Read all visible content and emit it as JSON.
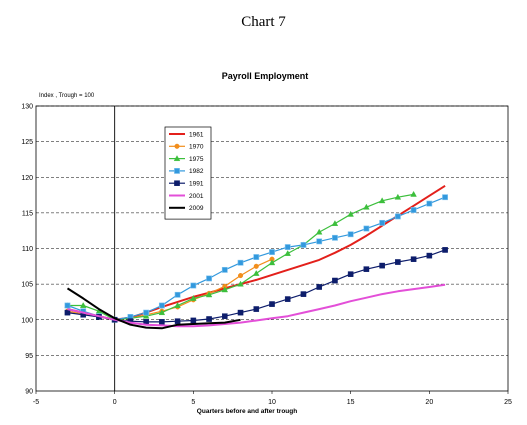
{
  "page_title": "Chart 7",
  "chart_data": {
    "type": "line",
    "title": "Payroll Employment",
    "ylabel": "Index , Trough = 100",
    "xlabel": "Quarters before and after trough",
    "xlim": [
      -5,
      25
    ],
    "ylim": [
      90,
      130
    ],
    "xticks": [
      -5,
      0,
      5,
      10,
      15,
      20,
      25
    ],
    "yticks": [
      90,
      95,
      100,
      105,
      110,
      115,
      120,
      125,
      130
    ],
    "grid": "horizontal dashed",
    "legend_position": "upper-left",
    "series": [
      {
        "name": "1961",
        "color": "#e3201b",
        "marker": "none",
        "width": 2,
        "points": [
          [
            -3,
            101.5
          ],
          [
            -2,
            101
          ],
          [
            -1,
            100.5
          ],
          [
            0,
            100
          ],
          [
            1,
            100.3
          ],
          [
            2,
            101
          ],
          [
            3,
            101.8
          ],
          [
            4,
            102.5
          ],
          [
            5,
            103.2
          ],
          [
            6,
            103.8
          ],
          [
            7,
            104.4
          ],
          [
            8,
            105
          ],
          [
            9,
            105.6
          ],
          [
            10,
            106.3
          ],
          [
            11,
            107
          ],
          [
            12,
            107.7
          ],
          [
            13,
            108.4
          ],
          [
            14,
            109.4
          ],
          [
            15,
            110.5
          ],
          [
            16,
            111.8
          ],
          [
            17,
            113.2
          ],
          [
            18,
            114.6
          ],
          [
            19,
            116
          ],
          [
            20,
            117.4
          ],
          [
            21,
            118.8
          ]
        ]
      },
      {
        "name": "1970",
        "color": "#f28e1c",
        "marker": "circle",
        "width": 1.2,
        "points": [
          [
            -3,
            101.2
          ],
          [
            -2,
            100.8
          ],
          [
            -1,
            100.4
          ],
          [
            0,
            100
          ],
          [
            1,
            100.2
          ],
          [
            2,
            100.7
          ],
          [
            3,
            101.2
          ],
          [
            4,
            101.8
          ],
          [
            5,
            102.8
          ],
          [
            6,
            103.7
          ],
          [
            7,
            104.7
          ],
          [
            8,
            106.2
          ],
          [
            9,
            107.5
          ],
          [
            10,
            108.5
          ]
        ]
      },
      {
        "name": "1975",
        "color": "#3cbf3c",
        "marker": "triangle",
        "width": 1.2,
        "points": [
          [
            -3,
            102
          ],
          [
            -2,
            102
          ],
          [
            -1,
            101.2
          ],
          [
            0,
            100
          ],
          [
            1,
            100.2
          ],
          [
            2,
            100.5
          ],
          [
            3,
            101
          ],
          [
            4,
            102
          ],
          [
            5,
            103
          ],
          [
            6,
            103.5
          ],
          [
            7,
            104.2
          ],
          [
            8,
            105
          ],
          [
            9,
            106.5
          ],
          [
            10,
            108
          ],
          [
            11,
            109.3
          ],
          [
            12,
            110.5
          ],
          [
            13,
            112.3
          ],
          [
            14,
            113.5
          ],
          [
            15,
            114.8
          ],
          [
            16,
            115.8
          ],
          [
            17,
            116.7
          ],
          [
            18,
            117.2
          ],
          [
            19,
            117.6
          ]
        ]
      },
      {
        "name": "1982",
        "color": "#3399dd",
        "marker": "square-open",
        "width": 1.2,
        "points": [
          [
            -3,
            102
          ],
          [
            -2,
            101.2
          ],
          [
            -1,
            100.5
          ],
          [
            0,
            100
          ],
          [
            1,
            100.4
          ],
          [
            2,
            101
          ],
          [
            3,
            102
          ],
          [
            4,
            103.5
          ],
          [
            5,
            104.8
          ],
          [
            6,
            105.8
          ],
          [
            7,
            107
          ],
          [
            8,
            108
          ],
          [
            9,
            108.8
          ],
          [
            10,
            109.5
          ],
          [
            11,
            110.2
          ],
          [
            12,
            110.5
          ],
          [
            13,
            111
          ],
          [
            14,
            111.5
          ],
          [
            15,
            112
          ],
          [
            16,
            112.8
          ],
          [
            17,
            113.6
          ],
          [
            18,
            114.5
          ],
          [
            19,
            115.4
          ],
          [
            20,
            116.3
          ],
          [
            21,
            117.2
          ]
        ]
      },
      {
        "name": "1991",
        "color": "#0d1d6b",
        "marker": "square",
        "width": 1.2,
        "points": [
          [
            -3,
            101
          ],
          [
            -2,
            100.7
          ],
          [
            -1,
            100.4
          ],
          [
            0,
            100
          ],
          [
            1,
            99.8
          ],
          [
            2,
            99.7
          ],
          [
            3,
            99.7
          ],
          [
            4,
            99.8
          ],
          [
            5,
            99.9
          ],
          [
            6,
            100.1
          ],
          [
            7,
            100.5
          ],
          [
            8,
            101
          ],
          [
            9,
            101.5
          ],
          [
            10,
            102.2
          ],
          [
            11,
            102.9
          ],
          [
            12,
            103.6
          ],
          [
            13,
            104.6
          ],
          [
            14,
            105.5
          ],
          [
            15,
            106.4
          ],
          [
            16,
            107.1
          ],
          [
            17,
            107.6
          ],
          [
            18,
            108.1
          ],
          [
            19,
            108.5
          ],
          [
            20,
            109
          ],
          [
            21,
            109.8
          ]
        ]
      },
      {
        "name": "2001",
        "color": "#e34fd8",
        "marker": "none",
        "width": 2,
        "points": [
          [
            -3,
            101.5
          ],
          [
            -2,
            101
          ],
          [
            -1,
            100.5
          ],
          [
            0,
            100
          ],
          [
            1,
            99.6
          ],
          [
            2,
            99.3
          ],
          [
            3,
            99.2
          ],
          [
            4,
            99.1
          ],
          [
            5,
            99.1
          ],
          [
            6,
            99.2
          ],
          [
            7,
            99.4
          ],
          [
            8,
            99.6
          ],
          [
            9,
            99.9
          ],
          [
            10,
            100.2
          ],
          [
            11,
            100.5
          ],
          [
            12,
            101
          ],
          [
            13,
            101.5
          ],
          [
            14,
            102
          ],
          [
            15,
            102.6
          ],
          [
            16,
            103.1
          ],
          [
            17,
            103.6
          ],
          [
            18,
            104
          ],
          [
            19,
            104.3
          ],
          [
            20,
            104.6
          ],
          [
            21,
            104.9
          ]
        ]
      },
      {
        "name": "2009",
        "color": "#000000",
        "marker": "none",
        "width": 2,
        "points": [
          [
            -3,
            104.4
          ],
          [
            -2,
            103
          ],
          [
            -1,
            101.5
          ],
          [
            0,
            100.2
          ],
          [
            1,
            99.3
          ],
          [
            2,
            98.9
          ],
          [
            3,
            98.8
          ],
          [
            4,
            99.3
          ],
          [
            5,
            99.4
          ],
          [
            6,
            99.5
          ],
          [
            7,
            99.6
          ],
          [
            8,
            100
          ]
        ]
      }
    ]
  }
}
